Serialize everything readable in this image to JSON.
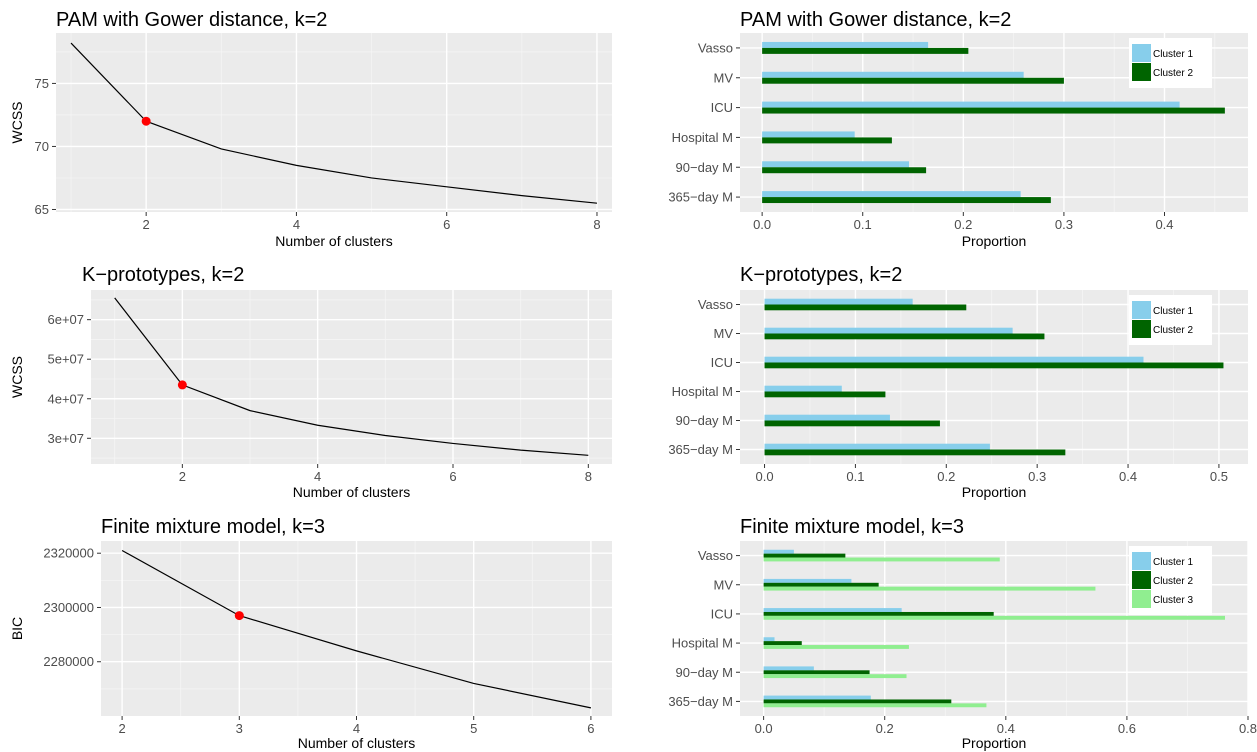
{
  "chart_data": [
    {
      "type": "line",
      "title": "PAM with Gower distance, k=2",
      "xlabel": "Number of clusters",
      "ylabel": "WCSS",
      "x": [
        1,
        2,
        3,
        4,
        5,
        6,
        7,
        8
      ],
      "y": [
        78.2,
        72.0,
        69.8,
        68.5,
        67.5,
        66.8,
        66.1,
        65.5
      ],
      "highlight": {
        "x": 2,
        "y": 72.0,
        "color": "#ff0000"
      },
      "xlim": [
        0.8,
        8.2
      ],
      "ylim": [
        64.8,
        79.0
      ],
      "xticks": [
        2,
        4,
        6,
        8
      ],
      "yticks": [
        65,
        70,
        75
      ],
      "ytick_labels": [
        "65",
        "70",
        "75"
      ],
      "grid": true
    },
    {
      "type": "bar",
      "orientation": "horizontal",
      "title": "PAM with Gower distance, k=2",
      "xlabel": "Proportion",
      "ylabel": "",
      "categories": [
        "Vasso",
        "MV",
        "ICU",
        "Hospital M",
        "90−day M",
        "365−day M"
      ],
      "series": [
        {
          "name": "Cluster 1",
          "color": "#87ceeb",
          "values": [
            0.165,
            0.26,
            0.415,
            0.092,
            0.146,
            0.257
          ]
        },
        {
          "name": "Cluster 2",
          "color": "#006400",
          "values": [
            0.205,
            0.3,
            0.46,
            0.129,
            0.163,
            0.287
          ]
        }
      ],
      "xlim": [
        -0.022,
        0.483
      ],
      "xticks": [
        0.0,
        0.1,
        0.2,
        0.3,
        0.4
      ],
      "xtick_labels": [
        "0.0",
        "0.1",
        "0.2",
        "0.3",
        "0.4"
      ],
      "legend": "top-right",
      "grid": true
    },
    {
      "type": "line",
      "title": "K−prototypes, k=2",
      "xlabel": "Number of clusters",
      "ylabel": "WCSS",
      "x": [
        1,
        2,
        3,
        4,
        5,
        6,
        7,
        8
      ],
      "y": [
        65500000,
        43500000,
        37000000,
        33300000,
        30700000,
        28700000,
        27000000,
        25700000
      ],
      "highlight": {
        "x": 2,
        "y": 43500000,
        "color": "#ff0000"
      },
      "xlim": [
        0.65,
        8.35
      ],
      "ylim": [
        23500000,
        67500000
      ],
      "xticks": [
        2,
        4,
        6,
        8
      ],
      "yticks": [
        30000000,
        40000000,
        50000000,
        60000000
      ],
      "ytick_labels": [
        "3e+07",
        "4e+07",
        "5e+07",
        "6e+07"
      ],
      "grid": true
    },
    {
      "type": "bar",
      "orientation": "horizontal",
      "title": "K−prototypes, k=2",
      "xlabel": "Proportion",
      "ylabel": "",
      "categories": [
        "Vasso",
        "MV",
        "ICU",
        "Hospital M",
        "90−day M",
        "365−day M"
      ],
      "series": [
        {
          "name": "Cluster 1",
          "color": "#87ceeb",
          "values": [
            0.163,
            0.273,
            0.417,
            0.085,
            0.138,
            0.248
          ]
        },
        {
          "name": "Cluster 2",
          "color": "#006400",
          "values": [
            0.222,
            0.308,
            0.505,
            0.133,
            0.193,
            0.331
          ]
        }
      ],
      "xlim": [
        -0.027,
        0.532
      ],
      "xticks": [
        0.0,
        0.1,
        0.2,
        0.3,
        0.4,
        0.5
      ],
      "xtick_labels": [
        "0.0",
        "0.1",
        "0.2",
        "0.3",
        "0.4",
        "0.5"
      ],
      "legend": "top-right",
      "grid": true
    },
    {
      "type": "line",
      "title": "Finite mixture model, k=3",
      "xlabel": "Number of clusters",
      "ylabel": "BIC",
      "x": [
        2,
        3,
        4,
        5,
        6
      ],
      "y": [
        2321000,
        2297000,
        2284000,
        2272000,
        2263000
      ],
      "highlight": {
        "x": 3,
        "y": 2297000,
        "color": "#ff0000"
      },
      "xlim": [
        1.82,
        6.18
      ],
      "ylim": [
        2260000,
        2324500
      ],
      "xticks": [
        2,
        3,
        4,
        5,
        6
      ],
      "yticks": [
        2280000,
        2300000,
        2320000
      ],
      "ytick_labels": [
        "2280000",
        "2300000",
        "2320000"
      ],
      "grid": true
    },
    {
      "type": "bar",
      "orientation": "horizontal",
      "title": "Finite mixture model, k=3",
      "xlabel": "Proportion",
      "ylabel": "",
      "categories": [
        "Vasso",
        "MV",
        "ICU",
        "Hospital M",
        "90−day M",
        "365−day M"
      ],
      "series": [
        {
          "name": "Cluster 1",
          "color": "#87ceeb",
          "values": [
            0.05,
            0.145,
            0.228,
            0.018,
            0.083,
            0.177
          ]
        },
        {
          "name": "Cluster 2",
          "color": "#006400",
          "values": [
            0.135,
            0.19,
            0.38,
            0.063,
            0.175,
            0.31
          ]
        },
        {
          "name": "Cluster 3",
          "color": "#90ee90",
          "values": [
            0.39,
            0.548,
            0.762,
            0.24,
            0.236,
            0.368
          ]
        }
      ],
      "xlim": [
        -0.039,
        0.8
      ],
      "xticks": [
        0.0,
        0.2,
        0.4,
        0.6,
        0.8
      ],
      "xtick_labels": [
        "0.0",
        "0.2",
        "0.4",
        "0.6",
        "0.8"
      ],
      "legend": "top-right",
      "grid": true
    }
  ]
}
